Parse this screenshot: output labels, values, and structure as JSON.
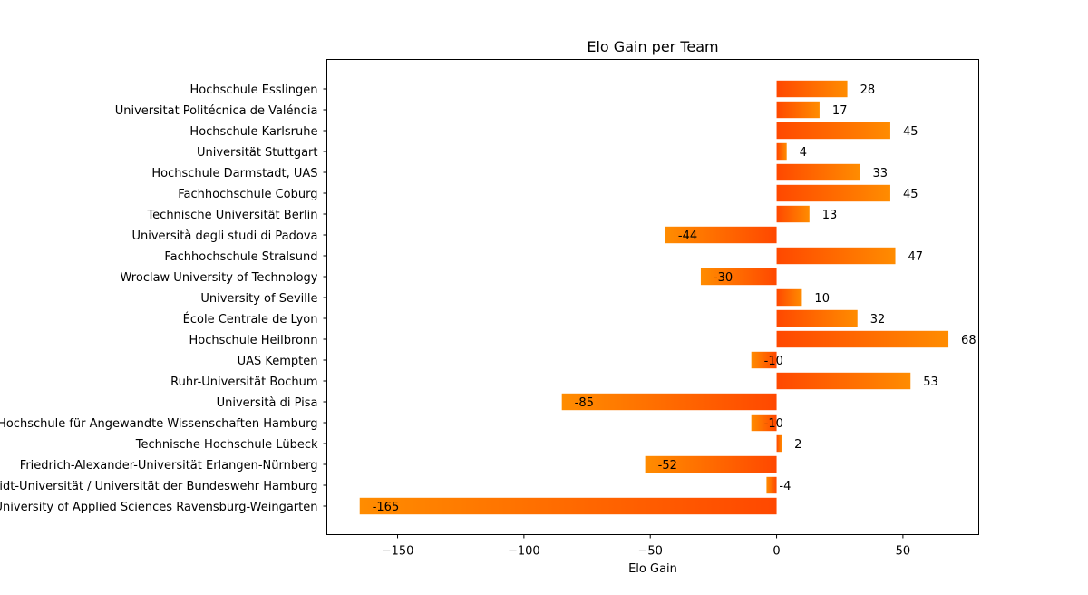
{
  "chart_data": {
    "type": "bar",
    "orientation": "horizontal",
    "title": "Elo Gain per Team",
    "xlabel": "Elo Gain",
    "ylabel": "",
    "xlim": [
      -178,
      80
    ],
    "xticks": [
      -150,
      -100,
      -50,
      0,
      50
    ],
    "xtick_labels": [
      "−150",
      "−100",
      "−50",
      "0",
      "50"
    ],
    "grid": false,
    "legend": "none",
    "colors": {
      "bar_start": "#ff4800",
      "bar_end": "#ff8c00"
    },
    "categories": [
      "Hochschule Esslingen",
      "Universitat Politécnica de Valéncia",
      "Hochschule Karlsruhe",
      "Universität Stuttgart",
      "Hochschule Darmstadt, UAS",
      "Fachhochschule Coburg",
      "Technische Universität Berlin",
      "Università degli studi di Padova",
      "Fachhochschule Stralsund",
      "Wroclaw University of Technology",
      "University of Seville",
      "École Centrale de Lyon",
      "Hochschule Heilbronn",
      "UAS Kempten",
      "Ruhr-Universität Bochum",
      "Università di Pisa",
      "Hochschule für Angewandte Wissenschaften Hamburg",
      "Technische Hochschule Lübeck",
      "Friedrich-Alexander-Universität Erlangen-Nürnberg",
      "Helmut-Schmidt-Universität / Universität der Bundeswehr Hamburg",
      "University of Applied Sciences Ravensburg-Weingarten"
    ],
    "values": [
      28,
      17,
      45,
      4,
      33,
      45,
      13,
      -44,
      47,
      -30,
      10,
      32,
      68,
      -10,
      53,
      -85,
      -10,
      2,
      -52,
      -4,
      -165
    ],
    "value_labels": [
      "28",
      "17",
      "45",
      "4",
      "33",
      "45",
      "13",
      "-44",
      "47",
      "-30",
      "10",
      "32",
      "68",
      "-10",
      "53",
      "-85",
      "-10",
      "2",
      "-52",
      "-4",
      "-165"
    ]
  }
}
